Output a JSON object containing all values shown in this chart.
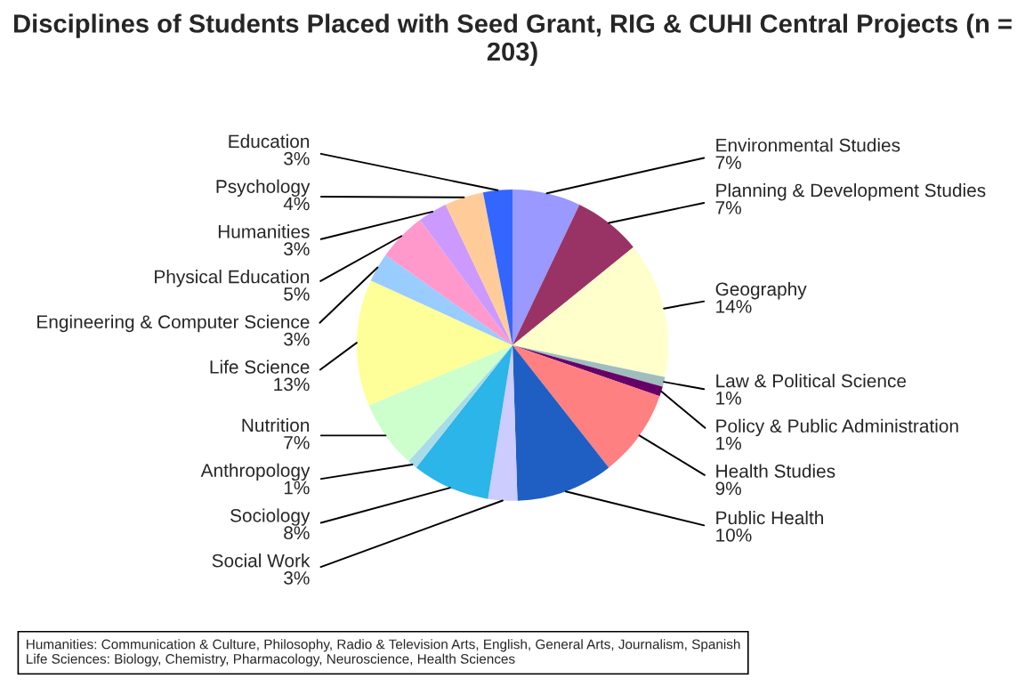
{
  "chart_data": {
    "type": "pie",
    "title": "Disciplines of Students Placed with Seed Grant, RIG & CUHI Central Projects (n = 203)",
    "categories": [
      "Environmental Studies",
      "Planning & Development Studies",
      "Geography",
      "Law & Political Science",
      "Policy & Public Administration",
      "Health Studies",
      "Public Health",
      "Social Work",
      "Sociology",
      "Anthropology",
      "Nutrition",
      "Life Science",
      "Engineering & Computer Science",
      "Physical Education",
      "Humanities",
      "Psychology",
      "Education"
    ],
    "values": [
      7,
      7,
      14,
      1,
      1,
      9,
      10,
      3,
      8,
      1,
      7,
      13,
      3,
      5,
      3,
      4,
      3
    ],
    "value_labels": [
      "7%",
      "7%",
      "14%",
      "1%",
      "1%",
      "9%",
      "10%",
      "3%",
      "8%",
      "1%",
      "7%",
      "13%",
      "3%",
      "5%",
      "3%",
      "4%",
      "3%"
    ],
    "colors": [
      "#9999ff",
      "#993366",
      "#ffffcc",
      "#9fbdbd",
      "#660066",
      "#ff8080",
      "#1f5fc4",
      "#ccccff",
      "#2bb5e8",
      "#a8dce8",
      "#ccffcc",
      "#ffff99",
      "#99ccff",
      "#ff99cc",
      "#cc99ff",
      "#ffcc99",
      "#3366ff"
    ],
    "legend": false,
    "annotations": [
      "Humanities: Communication & Culture, Philosophy, Radio & Television Arts, English, General Arts, Journalism, Spanish",
      "Life Sciences: Biology, Chemistry, Pharmacology, Neuroscience, Health Sciences"
    ]
  }
}
